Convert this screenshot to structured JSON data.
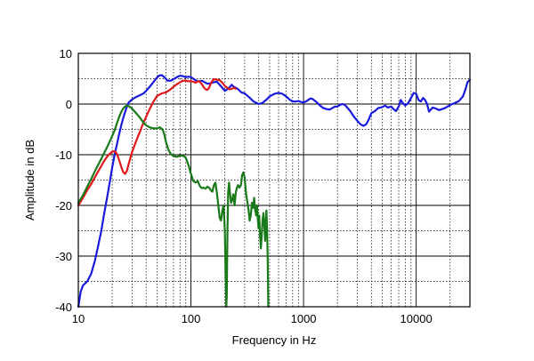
{
  "chart_data": {
    "type": "line",
    "title": "",
    "xlabel": "Frequency in Hz",
    "ylabel": "Amplitude in dB",
    "x_scale": "log",
    "xlim": [
      10,
      30000
    ],
    "ylim": [
      -40,
      10
    ],
    "grid": true,
    "x_ticks": [
      {
        "value": 10,
        "label": "10"
      },
      {
        "value": 100,
        "label": "100"
      },
      {
        "value": 1000,
        "label": "1000"
      },
      {
        "value": 10000,
        "label": "10000"
      }
    ],
    "y_ticks": [
      {
        "value": 10,
        "label": "10"
      },
      {
        "value": 0,
        "label": "0"
      },
      {
        "value": -10,
        "label": "-10"
      },
      {
        "value": -20,
        "label": "-20"
      },
      {
        "value": -30,
        "label": "-30"
      },
      {
        "value": -40,
        "label": "-40"
      }
    ],
    "series": [
      {
        "color": "#1a1adc",
        "points": [
          [
            10,
            -40
          ],
          [
            10.5,
            -37
          ],
          [
            11,
            -35.8
          ],
          [
            12,
            -35
          ],
          [
            13,
            -33.5
          ],
          [
            14,
            -31
          ],
          [
            15,
            -28
          ],
          [
            16,
            -25
          ],
          [
            17,
            -21.5
          ],
          [
            18,
            -18.5
          ],
          [
            19,
            -15.5
          ],
          [
            20,
            -12.5
          ],
          [
            21,
            -10
          ],
          [
            22,
            -8
          ],
          [
            23,
            -6
          ],
          [
            24,
            -4.3
          ],
          [
            25,
            -2.8
          ],
          [
            26,
            -1.6
          ],
          [
            27,
            -0.5
          ],
          [
            28,
            0.3
          ],
          [
            30,
            0.9
          ],
          [
            32,
            1.3
          ],
          [
            35,
            1.7
          ],
          [
            38,
            2.1
          ],
          [
            40,
            2.6
          ],
          [
            43,
            3.4
          ],
          [
            46,
            4.2
          ],
          [
            49,
            5.0
          ],
          [
            52,
            5.6
          ],
          [
            55,
            5.7
          ],
          [
            58,
            5.3
          ],
          [
            62,
            4.6
          ],
          [
            66,
            4.6
          ],
          [
            70,
            4.9
          ],
          [
            75,
            5.3
          ],
          [
            80,
            5.6
          ],
          [
            85,
            5.5
          ],
          [
            90,
            5.3
          ],
          [
            95,
            5.4
          ],
          [
            100,
            5.3
          ],
          [
            105,
            5.0
          ],
          [
            110,
            4.7
          ],
          [
            115,
            4.5
          ],
          [
            120,
            4.5
          ],
          [
            125,
            4.6
          ],
          [
            130,
            4.4
          ],
          [
            140,
            4.0
          ],
          [
            150,
            4.1
          ],
          [
            160,
            4.3
          ],
          [
            170,
            4.4
          ],
          [
            180,
            3.8
          ],
          [
            190,
            3.2
          ],
          [
            200,
            2.6
          ],
          [
            210,
            2.9
          ],
          [
            220,
            3.3
          ],
          [
            230,
            3.8
          ],
          [
            240,
            3.4
          ],
          [
            260,
            3.0
          ],
          [
            280,
            2.3
          ],
          [
            300,
            2.1
          ],
          [
            330,
            1.3
          ],
          [
            360,
            0.5
          ],
          [
            400,
            0.0
          ],
          [
            430,
            0.2
          ],
          [
            470,
            0.9
          ],
          [
            500,
            1.5
          ],
          [
            550,
            2.0
          ],
          [
            600,
            2.2
          ],
          [
            650,
            2.0
          ],
          [
            700,
            1.5
          ],
          [
            750,
            0.9
          ],
          [
            800,
            0.5
          ],
          [
            850,
            0.5
          ],
          [
            900,
            0.6
          ],
          [
            950,
            0.4
          ],
          [
            1000,
            0.3
          ],
          [
            1050,
            0.5
          ],
          [
            1100,
            0.8
          ],
          [
            1150,
            1.1
          ],
          [
            1200,
            1.0
          ],
          [
            1300,
            0.4
          ],
          [
            1400,
            -0.3
          ],
          [
            1500,
            -0.8
          ],
          [
            1600,
            -1.0
          ],
          [
            1700,
            -1.1
          ],
          [
            1800,
            -0.8
          ],
          [
            1900,
            -0.5
          ],
          [
            2000,
            -0.5
          ],
          [
            2100,
            -0.2
          ],
          [
            2200,
            0.0
          ],
          [
            2300,
            -0.1
          ],
          [
            2400,
            -0.5
          ],
          [
            2600,
            -1.4
          ],
          [
            2800,
            -2.5
          ],
          [
            3000,
            -3.3
          ],
          [
            3200,
            -4.0
          ],
          [
            3400,
            -4.3
          ],
          [
            3600,
            -4.0
          ],
          [
            3800,
            -3.0
          ],
          [
            4000,
            -1.8
          ],
          [
            4300,
            -1.4
          ],
          [
            4600,
            -0.8
          ],
          [
            5000,
            -0.6
          ],
          [
            5300,
            -0.3
          ],
          [
            5600,
            -0.7
          ],
          [
            6000,
            -0.5
          ],
          [
            6300,
            -1.0
          ],
          [
            6600,
            -1.4
          ],
          [
            7000,
            -0.5
          ],
          [
            7300,
            0.8
          ],
          [
            7600,
            0.2
          ],
          [
            8000,
            -0.3
          ],
          [
            8500,
            0.2
          ],
          [
            9000,
            1.2
          ],
          [
            9500,
            2.2
          ],
          [
            10000,
            2.0
          ],
          [
            10500,
            0.8
          ],
          [
            11000,
            0.5
          ],
          [
            11500,
            1.2
          ],
          [
            12000,
            0.8
          ],
          [
            12500,
            0.0
          ],
          [
            13000,
            -1.5
          ],
          [
            14000,
            -0.7
          ],
          [
            15000,
            -0.9
          ],
          [
            16000,
            -1.2
          ],
          [
            18000,
            -0.8
          ],
          [
            20000,
            -0.2
          ],
          [
            22000,
            0.2
          ],
          [
            24000,
            0.6
          ],
          [
            26000,
            1.5
          ],
          [
            27500,
            3.0
          ],
          [
            28500,
            4.3
          ],
          [
            30000,
            4.8
          ]
        ]
      },
      {
        "color": "#e01a1a",
        "points": [
          [
            10,
            -20
          ],
          [
            11,
            -18.5
          ],
          [
            12,
            -17
          ],
          [
            13,
            -15.8
          ],
          [
            14,
            -14.5
          ],
          [
            15,
            -13.3
          ],
          [
            16,
            -12.2
          ],
          [
            17,
            -11.2
          ],
          [
            18,
            -10.4
          ],
          [
            19,
            -9.8
          ],
          [
            20,
            -9.4
          ],
          [
            21,
            -9.3
          ],
          [
            22,
            -9.8
          ],
          [
            23,
            -11
          ],
          [
            24,
            -12.3
          ],
          [
            25,
            -13.4
          ],
          [
            26,
            -13.8
          ],
          [
            27,
            -13.2
          ],
          [
            28,
            -11.8
          ],
          [
            30,
            -9.5
          ],
          [
            32,
            -7.8
          ],
          [
            35,
            -5.6
          ],
          [
            38,
            -3.6
          ],
          [
            40,
            -2.5
          ],
          [
            43,
            -1.0
          ],
          [
            46,
            0.3
          ],
          [
            50,
            1.6
          ],
          [
            55,
            2.1
          ],
          [
            60,
            2.3
          ],
          [
            65,
            2.8
          ],
          [
            70,
            3.4
          ],
          [
            75,
            3.9
          ],
          [
            80,
            4.3
          ],
          [
            85,
            4.6
          ],
          [
            90,
            4.6
          ],
          [
            95,
            4.5
          ],
          [
            100,
            4.5
          ],
          [
            105,
            4.4
          ],
          [
            110,
            4.2
          ],
          [
            115,
            4.5
          ],
          [
            120,
            4.4
          ],
          [
            125,
            3.9
          ],
          [
            130,
            3.3
          ],
          [
            135,
            2.9
          ],
          [
            140,
            2.8
          ],
          [
            145,
            3.2
          ],
          [
            150,
            4.0
          ],
          [
            155,
            4.6
          ],
          [
            160,
            4.9
          ],
          [
            170,
            4.8
          ],
          [
            180,
            4.7
          ],
          [
            190,
            4.2
          ],
          [
            200,
            3.6
          ],
          [
            210,
            3.2
          ],
          [
            220,
            2.9
          ],
          [
            230,
            3.0
          ],
          [
            240,
            3.2
          ],
          [
            250,
            3.0
          ]
        ]
      },
      {
        "color": "#1a7a1a",
        "points": [
          [
            10,
            -19.5
          ],
          [
            11,
            -18
          ],
          [
            12,
            -16.3
          ],
          [
            13,
            -14.8
          ],
          [
            14,
            -13.3
          ],
          [
            15,
            -12
          ],
          [
            16,
            -10.8
          ],
          [
            17,
            -9.6
          ],
          [
            18,
            -8.5
          ],
          [
            19,
            -7.4
          ],
          [
            20,
            -6.3
          ],
          [
            21,
            -5.2
          ],
          [
            22,
            -3.8
          ],
          [
            23,
            -2.6
          ],
          [
            24,
            -1.6
          ],
          [
            25,
            -0.9
          ],
          [
            26,
            -0.5
          ],
          [
            27,
            -0.3
          ],
          [
            28,
            -0.4
          ],
          [
            30,
            -0.9
          ],
          [
            32,
            -1.6
          ],
          [
            35,
            -2.6
          ],
          [
            38,
            -3.7
          ],
          [
            40,
            -4.2
          ],
          [
            43,
            -4.6
          ],
          [
            46,
            -4.8
          ],
          [
            50,
            -4.8
          ],
          [
            53,
            -4.6
          ],
          [
            56,
            -5.0
          ],
          [
            58,
            -6.0
          ],
          [
            60,
            -7.5
          ],
          [
            63,
            -9.0
          ],
          [
            66,
            -9.8
          ],
          [
            70,
            -10.3
          ],
          [
            75,
            -10.4
          ],
          [
            80,
            -10.2
          ],
          [
            85,
            -10.2
          ],
          [
            90,
            -10.6
          ],
          [
            95,
            -12.0
          ],
          [
            100,
            -13.8
          ],
          [
            105,
            -15.2
          ],
          [
            110,
            -15.5
          ],
          [
            115,
            -15.2
          ],
          [
            120,
            -16.2
          ],
          [
            125,
            -16.6
          ],
          [
            130,
            -16.5
          ],
          [
            135,
            -16.7
          ],
          [
            140,
            -16.3
          ],
          [
            145,
            -16.5
          ],
          [
            150,
            -17.0
          ],
          [
            155,
            -17.3
          ],
          [
            160,
            -16.0
          ],
          [
            165,
            -15.5
          ],
          [
            170,
            -17.5
          ],
          [
            175,
            -20.0
          ],
          [
            180,
            -22.5
          ],
          [
            185,
            -23.0
          ],
          [
            190,
            -21.0
          ],
          [
            195,
            -20.0
          ],
          [
            200,
            -25.0
          ],
          [
            203,
            -33.0
          ],
          [
            206,
            -40.0
          ],
          [
            208,
            -38.0
          ],
          [
            211,
            -25.0
          ],
          [
            214,
            -17.5
          ],
          [
            218,
            -15.5
          ],
          [
            222,
            -17.5
          ],
          [
            227,
            -19.5
          ],
          [
            232,
            -19.0
          ],
          [
            238,
            -17.8
          ],
          [
            244,
            -20.0
          ],
          [
            250,
            -17.5
          ],
          [
            256,
            -16.5
          ],
          [
            262,
            -16.0
          ],
          [
            270,
            -16.5
          ],
          [
            278,
            -16.0
          ],
          [
            285,
            -14.0
          ],
          [
            292,
            -13.5
          ],
          [
            300,
            -14.5
          ],
          [
            305,
            -16.5
          ],
          [
            310,
            -18.0
          ],
          [
            318,
            -19.5
          ],
          [
            325,
            -21.0
          ],
          [
            332,
            -23.0
          ],
          [
            340,
            -22.0
          ],
          [
            348,
            -19.5
          ],
          [
            356,
            -20.5
          ],
          [
            364,
            -18.5
          ],
          [
            372,
            -21.0
          ],
          [
            380,
            -22.0
          ],
          [
            386,
            -20.0
          ],
          [
            392,
            -22.5
          ],
          [
            398,
            -24.5
          ],
          [
            404,
            -22.0
          ],
          [
            410,
            -25.5
          ],
          [
            418,
            -28.5
          ],
          [
            425,
            -26.0
          ],
          [
            432,
            -23.0
          ],
          [
            440,
            -21.5
          ],
          [
            448,
            -24.0
          ],
          [
            456,
            -27.0
          ],
          [
            462,
            -23.0
          ],
          [
            468,
            -21.0
          ],
          [
            474,
            -24.5
          ],
          [
            480,
            -30.0
          ],
          [
            486,
            -40.0
          ]
        ]
      }
    ]
  }
}
